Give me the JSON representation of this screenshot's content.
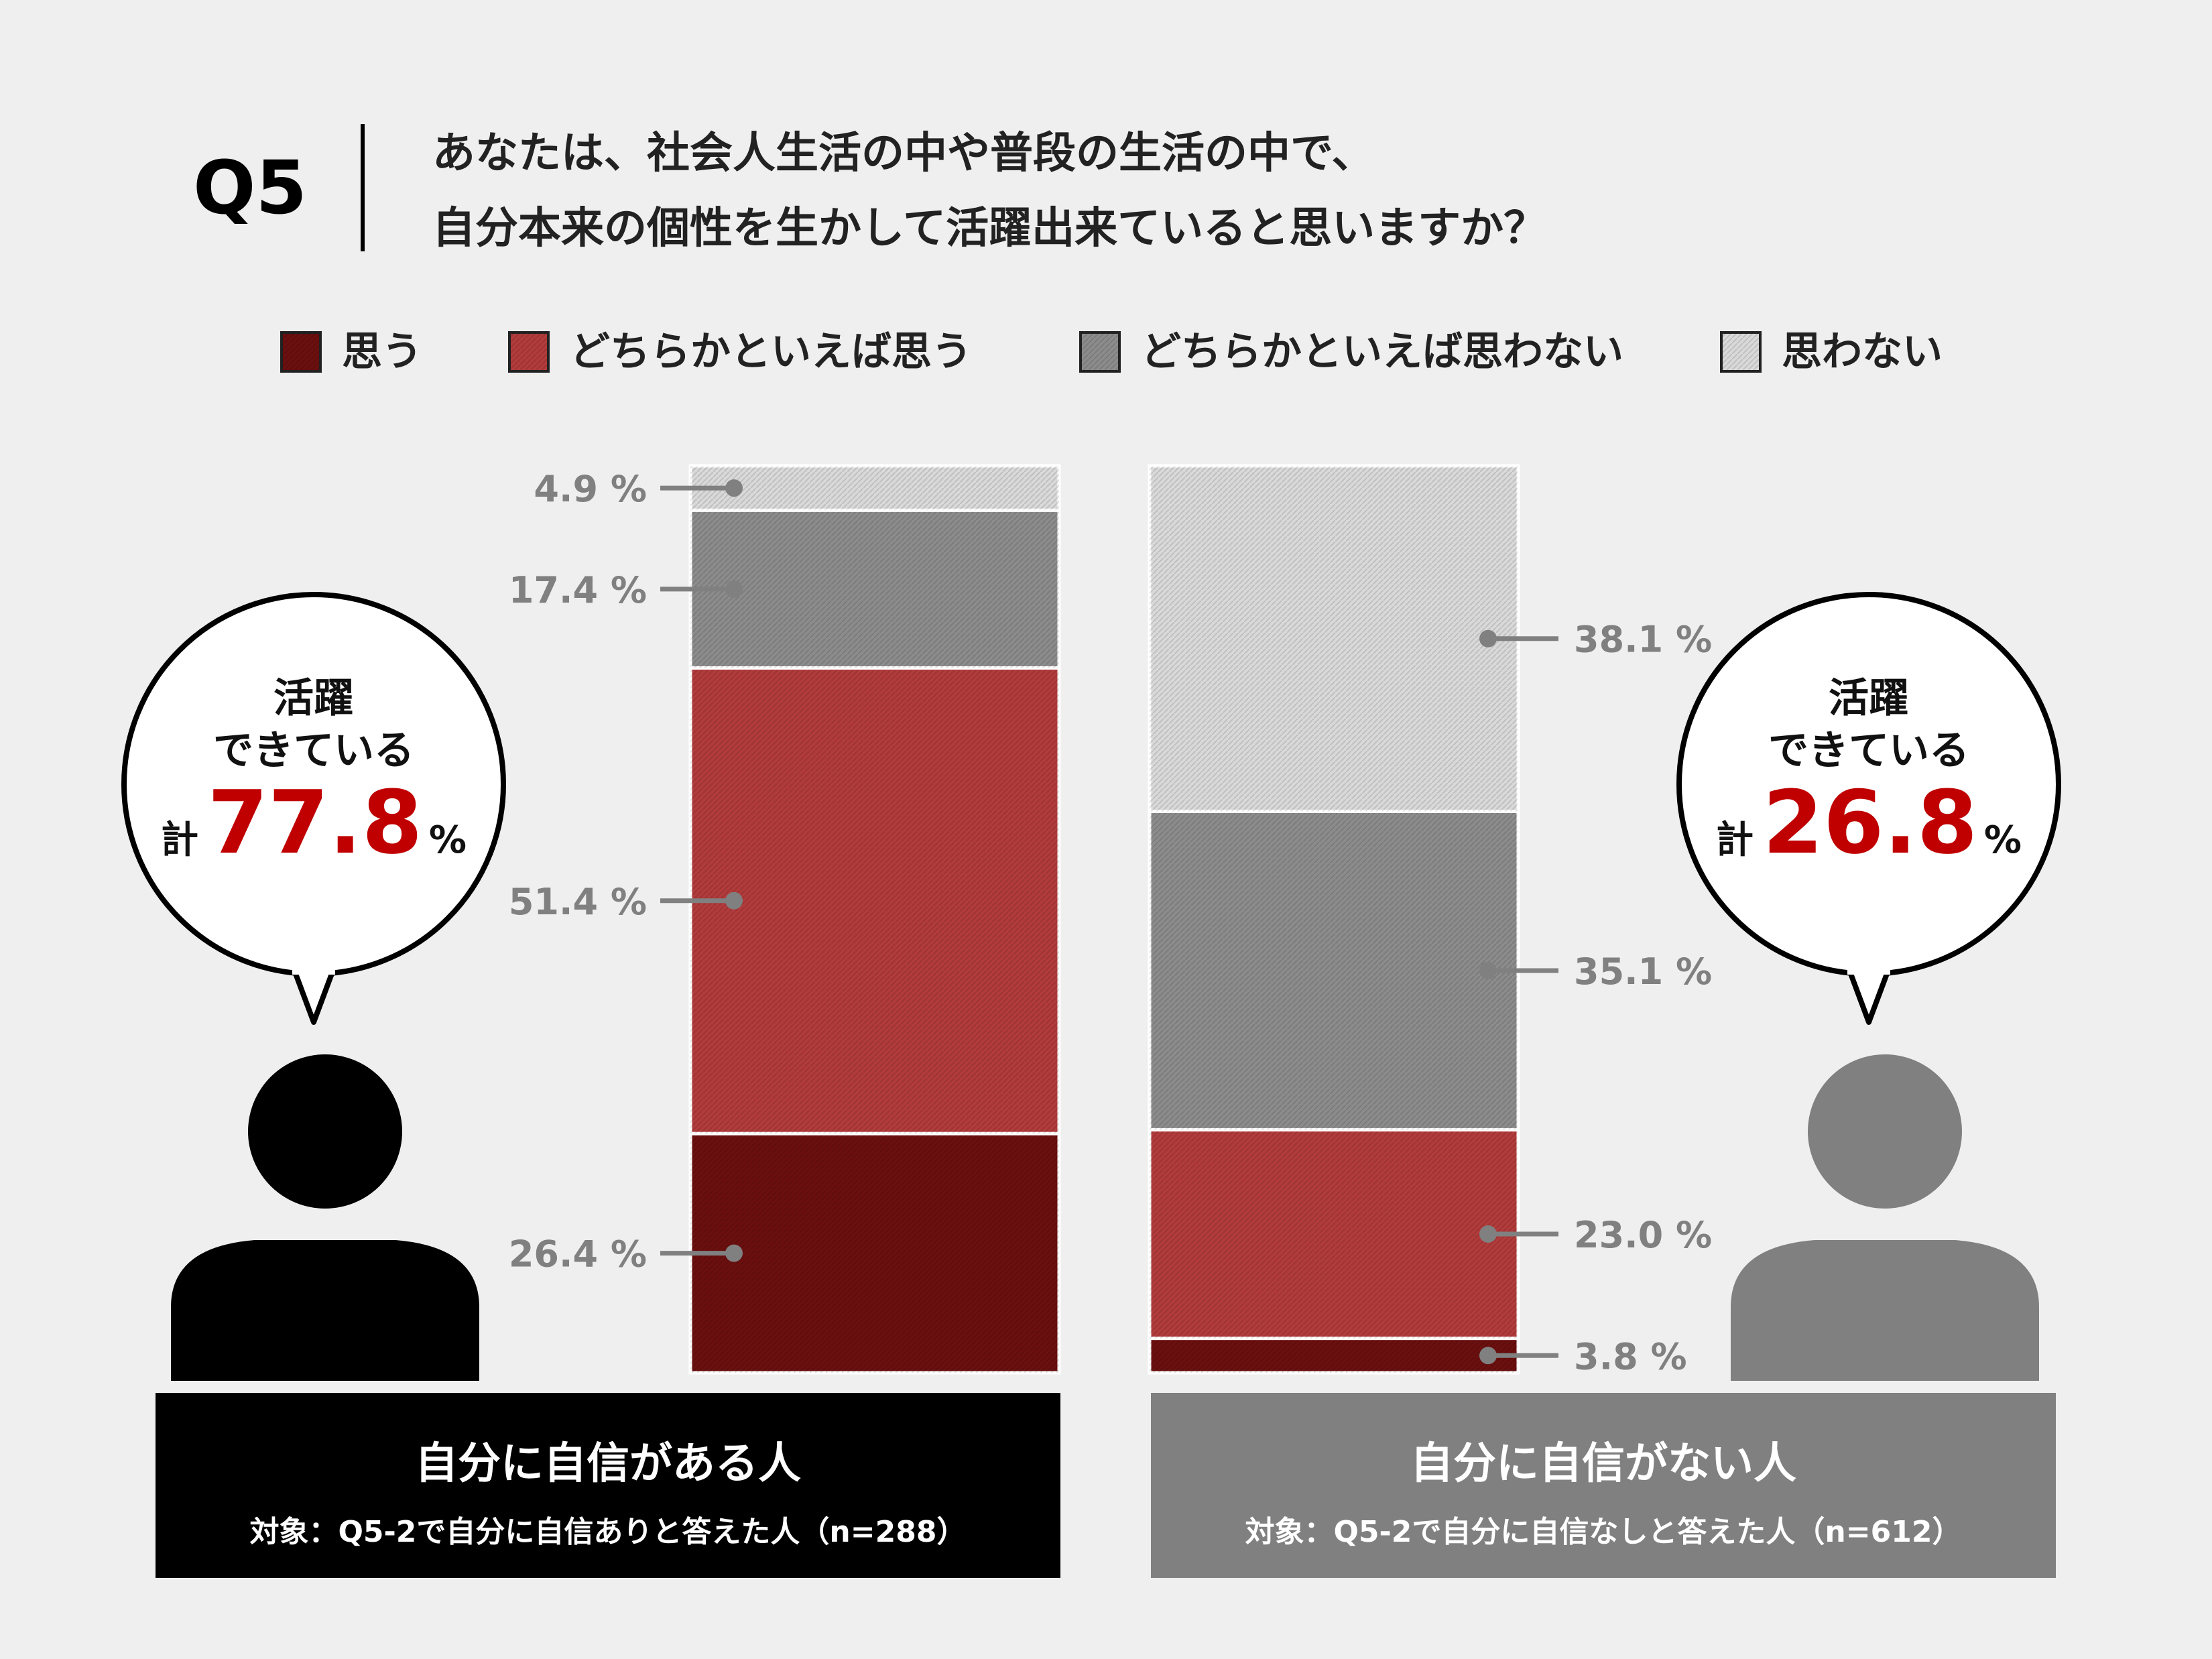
{
  "question": {
    "number": "Q5",
    "line1": "あなたは、社会人生活の中や普段の生活の中で、",
    "line2": "自分本来の個性を生かして活躍出来ていると思いますか？"
  },
  "chart_data": {
    "type": "bar",
    "stacked": true,
    "categories": [
      "自分に自信がある人",
      "自分に自信がない人"
    ],
    "category_subtitles": [
      "対象：Q5-2で自分に自信ありと答えた人（n=288）",
      "対象：Q5-2で自分に自信なしと答えた人（n=612）"
    ],
    "series": [
      {
        "name": "思う",
        "values": [
          26.4,
          3.8
        ],
        "color": "#6b0f0f"
      },
      {
        "name": "どちらかといえば思う",
        "values": [
          51.4,
          23.0
        ],
        "color": "#b23b3b"
      },
      {
        "name": "どちらかといえば思わない",
        "values": [
          17.4,
          35.1
        ],
        "color": "#8c8c8c"
      },
      {
        "name": "思わない",
        "values": [
          4.9,
          38.1
        ],
        "color": "#d9d9d9"
      }
    ],
    "value_labels": [
      [
        "26.4 %",
        "51.4 %",
        "17.4 %",
        "4.9 %"
      ],
      [
        "3.8 %",
        "23.0 %",
        "35.1 %",
        "38.1 %"
      ]
    ],
    "legend_position": "top",
    "ylim": [
      0,
      100
    ]
  },
  "callouts": [
    {
      "line1": "活躍",
      "line2": "できている",
      "prefix": "計",
      "value": "77.8",
      "unit": "%"
    },
    {
      "line1": "活躍",
      "line2": "できている",
      "prefix": "計",
      "value": "26.8",
      "unit": "%"
    }
  ],
  "colors": {
    "accent_red": "#c00000",
    "confident_person": "#000000",
    "unconfident_person": "#808080"
  }
}
